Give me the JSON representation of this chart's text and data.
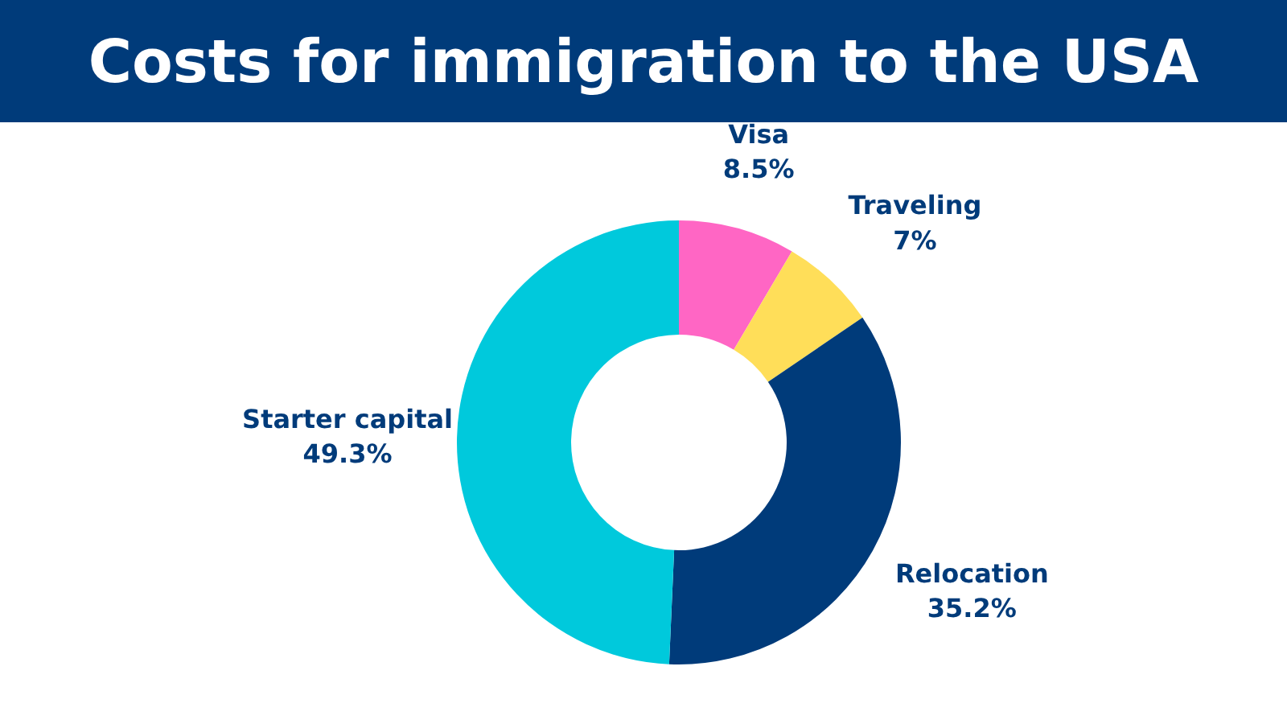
{
  "chart_data": {
    "type": "donut",
    "title": "Costs for immigration to the USA",
    "categories": [
      "Visa",
      "Traveling",
      "Relocation",
      "Starter capital"
    ],
    "values": [
      8.5,
      7,
      35.2,
      49.3
    ],
    "colors": [
      "#ff66c4",
      "#ffde59",
      "#003b7a",
      "#00c9dc"
    ],
    "value_labels": [
      "8.5%",
      "7%",
      "35.2%",
      "49.3%"
    ]
  }
}
